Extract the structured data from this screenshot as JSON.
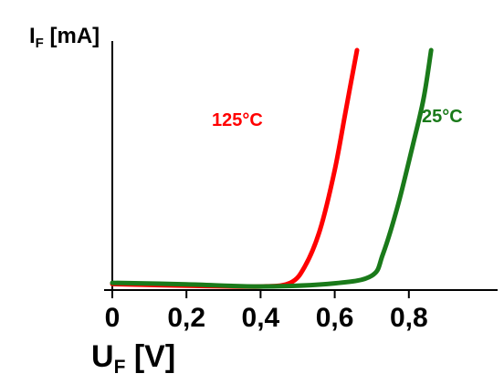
{
  "chart_data": {
    "type": "line",
    "ylabel": {
      "main": "I",
      "sub": "F",
      "unit": " [mA]"
    },
    "xlabel": {
      "main": "U",
      "sub": "F",
      "unit": " [V]"
    },
    "xlim": [
      0,
      1.0
    ],
    "ylim": [
      0,
      100
    ],
    "x_ticks": [
      {
        "value": 0,
        "label": "0"
      },
      {
        "value": 0.2,
        "label": "0,2"
      },
      {
        "value": 0.4,
        "label": "0,4"
      },
      {
        "value": 0.6,
        "label": "0,6"
      },
      {
        "value": 0.8,
        "label": "0,8"
      }
    ],
    "grid": false,
    "series": [
      {
        "name": "125°C",
        "color": "#ff0000",
        "points": [
          [
            0,
            2.5
          ],
          [
            0.2,
            1.8
          ],
          [
            0.4,
            1.5
          ],
          [
            0.48,
            3
          ],
          [
            0.52,
            10
          ],
          [
            0.56,
            25
          ],
          [
            0.6,
            50
          ],
          [
            0.63,
            75
          ],
          [
            0.66,
            100
          ]
        ]
      },
      {
        "name": "25°C",
        "color": "#1a7a1a",
        "points": [
          [
            0,
            3
          ],
          [
            0.2,
            2.4
          ],
          [
            0.4,
            1.5
          ],
          [
            0.6,
            2.8
          ],
          [
            0.7,
            6
          ],
          [
            0.73,
            15
          ],
          [
            0.77,
            35
          ],
          [
            0.81,
            60
          ],
          [
            0.84,
            80
          ],
          [
            0.86,
            100
          ]
        ]
      }
    ]
  }
}
